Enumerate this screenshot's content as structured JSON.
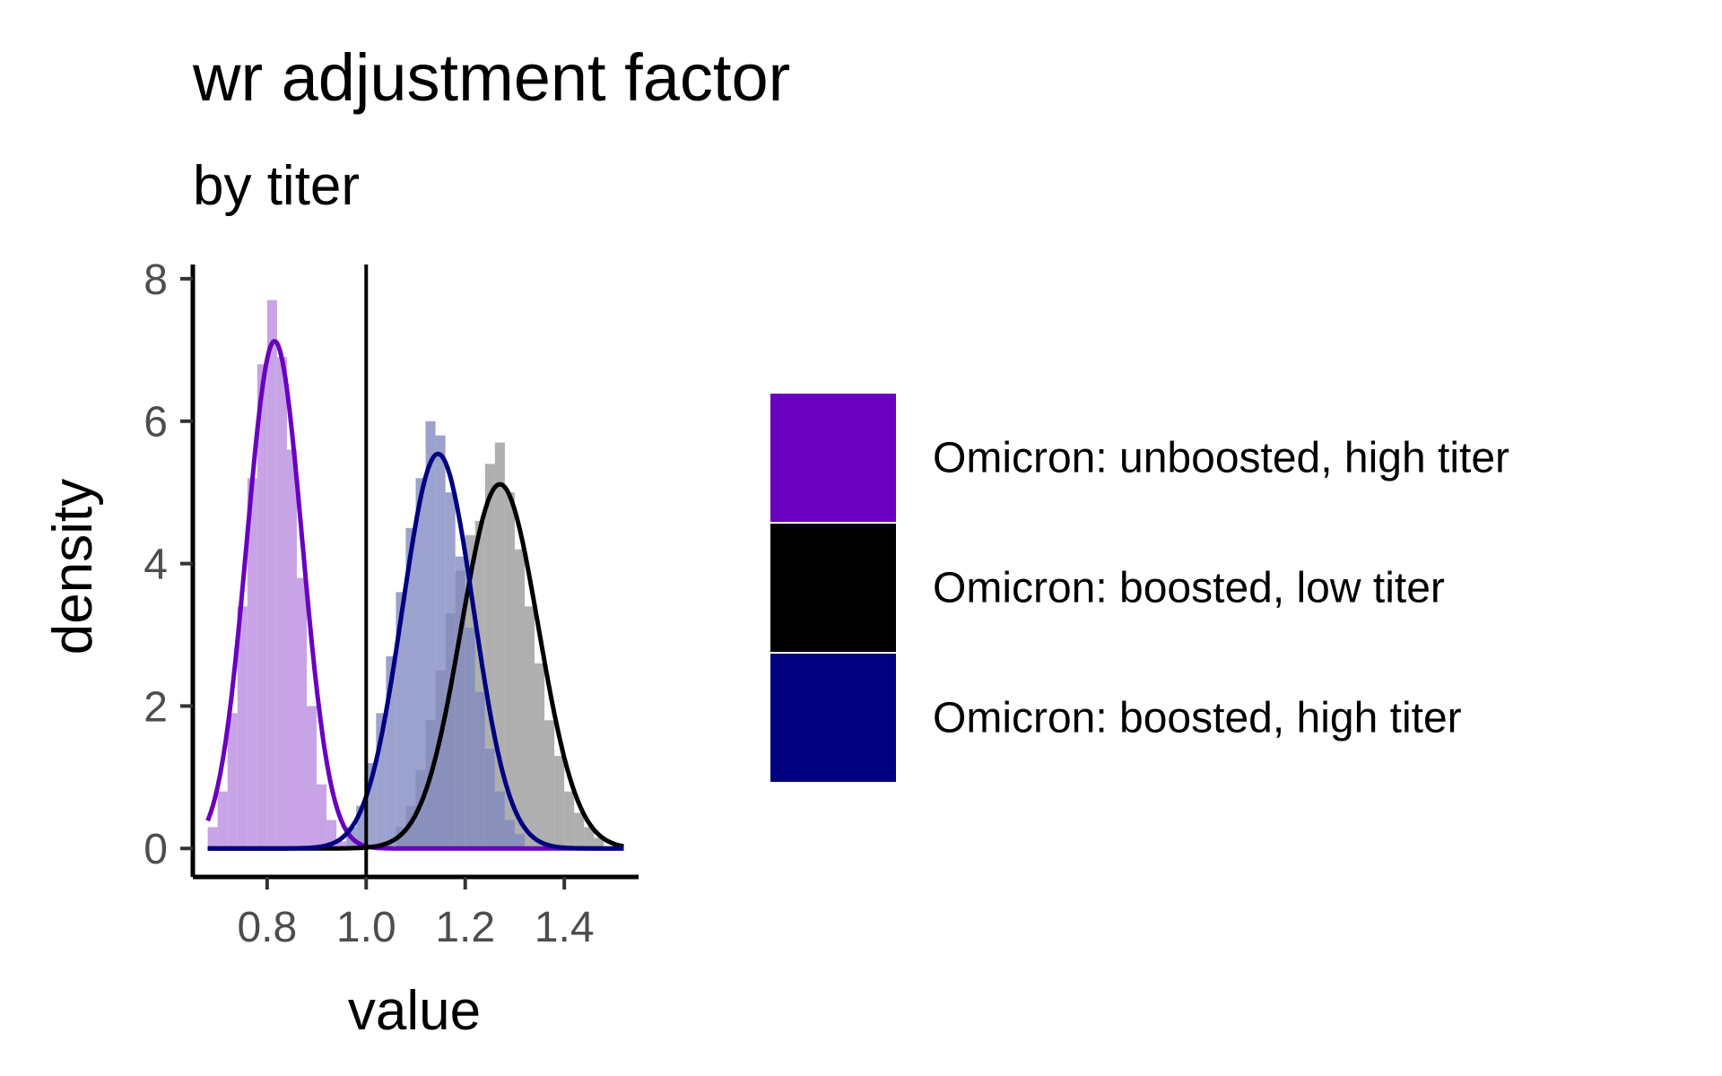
{
  "chart_data": {
    "type": "histogram-density",
    "title": "wr adjustment factor",
    "subtitle": "by titer",
    "xlabel": "value",
    "ylabel": "density",
    "xlim": [
      0.65,
      1.55
    ],
    "ylim": [
      -0.4,
      8.2
    ],
    "x_ticks": [
      0.8,
      1.0,
      1.2,
      1.4
    ],
    "x_tick_labels": [
      "0.8",
      "1.0",
      "1.2",
      "1.4"
    ],
    "y_ticks": [
      0,
      2,
      4,
      6,
      8
    ],
    "y_tick_labels": [
      "0",
      "2",
      "4",
      "6",
      "8"
    ],
    "vline_x": 1.0,
    "grid": false,
    "legend_position": "right",
    "series": [
      {
        "name": "Omicron: unboosted, high titer",
        "color": "#6a00c0",
        "fill": "#b88be0",
        "density_mean": 0.815,
        "density_sd": 0.056,
        "range": [
          0.68,
          1.52
        ],
        "hist_bins": [
          {
            "x": 0.69,
            "y": 0.3
          },
          {
            "x": 0.71,
            "y": 0.8
          },
          {
            "x": 0.73,
            "y": 1.9
          },
          {
            "x": 0.75,
            "y": 3.4
          },
          {
            "x": 0.77,
            "y": 5.2
          },
          {
            "x": 0.79,
            "y": 6.8
          },
          {
            "x": 0.81,
            "y": 7.7
          },
          {
            "x": 0.83,
            "y": 6.9
          },
          {
            "x": 0.85,
            "y": 5.6
          },
          {
            "x": 0.87,
            "y": 3.8
          },
          {
            "x": 0.89,
            "y": 2.0
          },
          {
            "x": 0.91,
            "y": 0.9
          },
          {
            "x": 0.93,
            "y": 0.4
          },
          {
            "x": 0.95,
            "y": 0.1
          }
        ]
      },
      {
        "name": "Omicron: boosted, low titer",
        "color": "#000000",
        "fill": "#999999",
        "density_mean": 1.27,
        "density_sd": 0.078,
        "range": [
          0.68,
          1.52
        ],
        "hist_bins": [
          {
            "x": 1.07,
            "y": 0.3
          },
          {
            "x": 1.09,
            "y": 0.6
          },
          {
            "x": 1.11,
            "y": 1.1
          },
          {
            "x": 1.13,
            "y": 1.8
          },
          {
            "x": 1.15,
            "y": 2.5
          },
          {
            "x": 1.17,
            "y": 3.3
          },
          {
            "x": 1.19,
            "y": 3.9
          },
          {
            "x": 1.21,
            "y": 4.4
          },
          {
            "x": 1.23,
            "y": 4.6
          },
          {
            "x": 1.25,
            "y": 5.4
          },
          {
            "x": 1.27,
            "y": 5.7
          },
          {
            "x": 1.29,
            "y": 5.0
          },
          {
            "x": 1.31,
            "y": 4.2
          },
          {
            "x": 1.33,
            "y": 3.4
          },
          {
            "x": 1.35,
            "y": 2.6
          },
          {
            "x": 1.37,
            "y": 1.8
          },
          {
            "x": 1.39,
            "y": 1.3
          },
          {
            "x": 1.41,
            "y": 0.8
          },
          {
            "x": 1.43,
            "y": 0.5
          },
          {
            "x": 1.45,
            "y": 0.3
          },
          {
            "x": 1.47,
            "y": 0.15
          }
        ]
      },
      {
        "name": "Omicron: boosted, high titer",
        "color": "#000080",
        "fill": "#8088c0",
        "density_mean": 1.145,
        "density_sd": 0.072,
        "range": [
          0.68,
          1.52
        ],
        "hist_bins": [
          {
            "x": 0.97,
            "y": 0.3
          },
          {
            "x": 0.99,
            "y": 0.6
          },
          {
            "x": 1.01,
            "y": 1.2
          },
          {
            "x": 1.03,
            "y": 1.9
          },
          {
            "x": 1.05,
            "y": 2.7
          },
          {
            "x": 1.07,
            "y": 3.6
          },
          {
            "x": 1.09,
            "y": 4.5
          },
          {
            "x": 1.11,
            "y": 5.2
          },
          {
            "x": 1.13,
            "y": 6.0
          },
          {
            "x": 1.15,
            "y": 5.8
          },
          {
            "x": 1.17,
            "y": 5.0
          },
          {
            "x": 1.19,
            "y": 4.1
          },
          {
            "x": 1.21,
            "y": 3.1
          },
          {
            "x": 1.23,
            "y": 2.2
          },
          {
            "x": 1.25,
            "y": 1.4
          },
          {
            "x": 1.27,
            "y": 0.8
          },
          {
            "x": 1.29,
            "y": 0.4
          },
          {
            "x": 1.31,
            "y": 0.2
          }
        ]
      }
    ],
    "legend_order": [
      0,
      1,
      2
    ]
  }
}
